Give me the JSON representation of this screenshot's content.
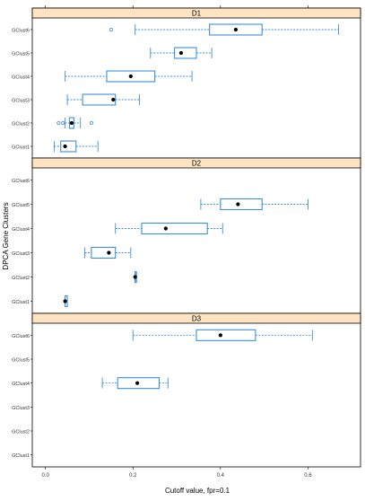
{
  "chart_data": {
    "type": "boxplot",
    "xlabel": "Cutoff value, fpr=0.1",
    "ylabel": "DPCA Gene Clusters",
    "xlim": [
      -0.03,
      0.72
    ],
    "x_ticks": [
      "0.0",
      "0.2",
      "0.4",
      "0.6"
    ],
    "x_tick_values": [
      0.0,
      0.2,
      0.4,
      0.6
    ],
    "categories": [
      "GClust1",
      "GClust2",
      "GClust3",
      "GClust4",
      "GClust5",
      "GClust6"
    ],
    "grid": false,
    "colors": {
      "box": "#3d8fd9",
      "strip": "#ffe4c4",
      "median_dot": "#000000",
      "frame": "#000000"
    },
    "panels": [
      {
        "title": "D1",
        "boxes": [
          {
            "category": "GClust1",
            "whisker_low": 0.02,
            "q1": 0.035,
            "median": 0.045,
            "q3": 0.07,
            "whisker_high": 0.12,
            "outliers": []
          },
          {
            "category": "GClust2",
            "whisker_low": 0.045,
            "q1": 0.055,
            "median": 0.06,
            "q3": 0.065,
            "whisker_high": 0.08,
            "outliers": [
              0.03,
              0.04,
              0.105
            ]
          },
          {
            "category": "GClust3",
            "whisker_low": 0.05,
            "q1": 0.085,
            "median": 0.155,
            "q3": 0.16,
            "whisker_high": 0.215,
            "outliers": []
          },
          {
            "category": "GClust4",
            "whisker_low": 0.045,
            "q1": 0.14,
            "median": 0.195,
            "q3": 0.25,
            "whisker_high": 0.335,
            "outliers": []
          },
          {
            "category": "GClust5",
            "whisker_low": 0.24,
            "q1": 0.295,
            "median": 0.31,
            "q3": 0.345,
            "whisker_high": 0.38,
            "outliers": []
          },
          {
            "category": "GClust6",
            "whisker_low": 0.205,
            "q1": 0.375,
            "median": 0.435,
            "q3": 0.495,
            "whisker_high": 0.67,
            "outliers": [
              0.15
            ]
          }
        ]
      },
      {
        "title": "D2",
        "boxes": [
          {
            "category": "GClust1",
            "whisker_low": 0.045,
            "q1": 0.045,
            "median": 0.045,
            "q3": 0.05,
            "whisker_high": 0.05,
            "outliers": []
          },
          {
            "category": "GClust2",
            "whisker_low": 0.205,
            "q1": 0.205,
            "median": 0.205,
            "q3": 0.205,
            "whisker_high": 0.205,
            "outliers": []
          },
          {
            "category": "GClust3",
            "whisker_low": 0.09,
            "q1": 0.105,
            "median": 0.145,
            "q3": 0.16,
            "whisker_high": 0.195,
            "outliers": []
          },
          {
            "category": "GClust4",
            "whisker_low": 0.16,
            "q1": 0.22,
            "median": 0.275,
            "q3": 0.37,
            "whisker_high": 0.405,
            "outliers": []
          },
          {
            "category": "GClust5",
            "whisker_low": 0.355,
            "q1": 0.4,
            "median": 0.44,
            "q3": 0.495,
            "whisker_high": 0.6,
            "outliers": []
          },
          {
            "category": "GClust6",
            "empty": true
          }
        ]
      },
      {
        "title": "D3",
        "boxes": [
          {
            "category": "GClust1",
            "empty": true
          },
          {
            "category": "GClust2",
            "empty": true
          },
          {
            "category": "GClust3",
            "empty": true
          },
          {
            "category": "GClust4",
            "whisker_low": 0.13,
            "q1": 0.165,
            "median": 0.21,
            "q3": 0.26,
            "whisker_high": 0.28,
            "outliers": []
          },
          {
            "category": "GClust5",
            "empty": true
          },
          {
            "category": "GClust6",
            "whisker_low": 0.2,
            "q1": 0.345,
            "median": 0.4,
            "q3": 0.48,
            "whisker_high": 0.61,
            "outliers": []
          }
        ]
      }
    ]
  }
}
